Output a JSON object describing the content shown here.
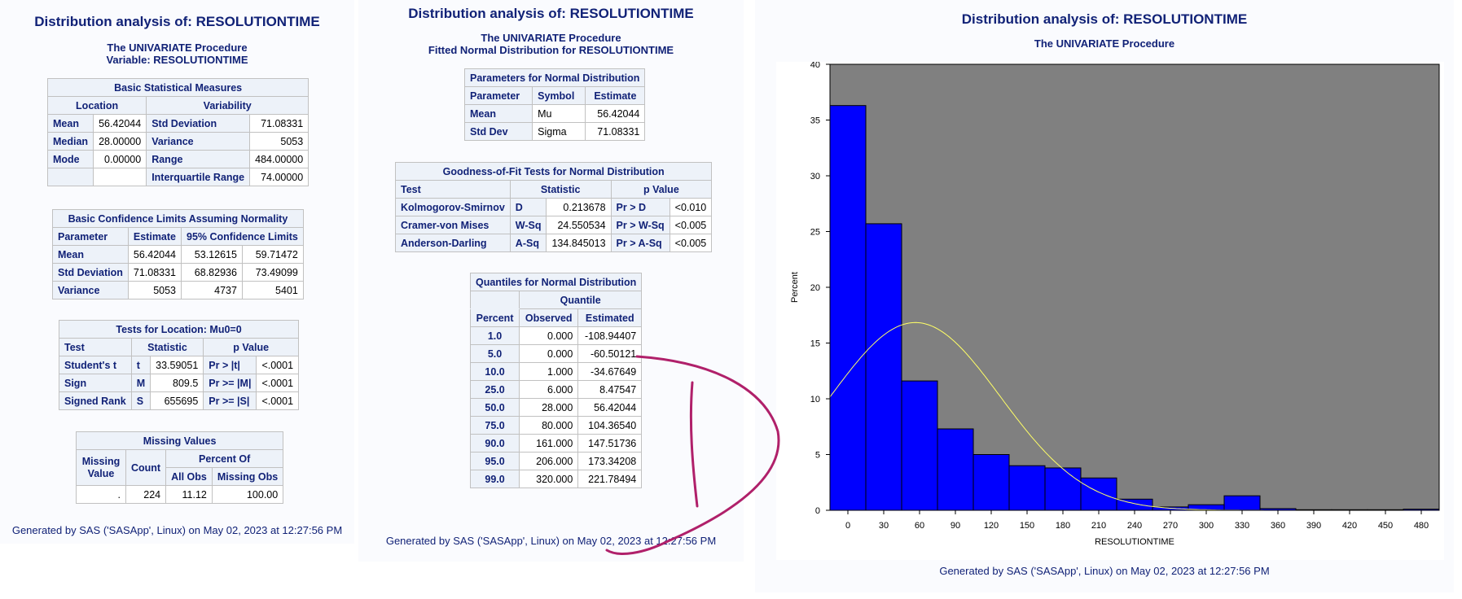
{
  "panel1": {
    "title": "Distribution analysis of: RESOLUTIONTIME",
    "proc": "The UNIVARIATE Procedure",
    "variable": "Variable: RESOLUTIONTIME",
    "basic_measures": {
      "caption": "Basic Statistical Measures",
      "group_location": "Location",
      "group_variability": "Variability",
      "rows": [
        [
          "Mean",
          "56.42044",
          "Std Deviation",
          "71.08331"
        ],
        [
          "Median",
          "28.00000",
          "Variance",
          "5053"
        ],
        [
          "Mode",
          "0.00000",
          "Range",
          "484.00000"
        ],
        [
          "",
          "",
          "Interquartile Range",
          "74.00000"
        ]
      ]
    },
    "confidence": {
      "caption": "Basic Confidence Limits Assuming Normality",
      "headers": [
        "Parameter",
        "Estimate",
        "95% Confidence Limits"
      ],
      "rows": [
        [
          "Mean",
          "56.42044",
          "53.12615",
          "59.71472"
        ],
        [
          "Std Deviation",
          "71.08331",
          "68.82936",
          "73.49099"
        ],
        [
          "Variance",
          "5053",
          "4737",
          "5401"
        ]
      ]
    },
    "location_tests": {
      "caption": "Tests for Location: Mu0=0",
      "headers": [
        "Test",
        "Statistic",
        "p Value"
      ],
      "rows": [
        [
          "Student's t",
          "t",
          "33.59051",
          "Pr > |t|",
          "<.0001"
        ],
        [
          "Sign",
          "M",
          "809.5",
          "Pr >= |M|",
          "<.0001"
        ],
        [
          "Signed Rank",
          "S",
          "655695",
          "Pr >= |S|",
          "<.0001"
        ]
      ]
    },
    "missing": {
      "caption": "Missing Values",
      "header_missing": "Missing Value",
      "header_count": "Count",
      "header_percent_of": "Percent Of",
      "header_all": "All Obs",
      "header_missing_obs": "Missing Obs",
      "row": [
        ".",
        "224",
        "11.12",
        "100.00"
      ]
    },
    "footer": "Generated by SAS ('SASApp', Linux) on May 02, 2023 at 12:27:56 PM"
  },
  "panel2": {
    "title": "Distribution analysis of: RESOLUTIONTIME",
    "proc": "The UNIVARIATE Procedure",
    "subtitle": "Fitted Normal Distribution for RESOLUTIONTIME",
    "params": {
      "caption": "Parameters for Normal Distribution",
      "headers": [
        "Parameter",
        "Symbol",
        "Estimate"
      ],
      "rows": [
        [
          "Mean",
          "Mu",
          "56.42044"
        ],
        [
          "Std Dev",
          "Sigma",
          "71.08331"
        ]
      ]
    },
    "gof": {
      "caption": "Goodness-of-Fit Tests for Normal Distribution",
      "headers": [
        "Test",
        "Statistic",
        "p Value"
      ],
      "rows": [
        [
          "Kolmogorov-Smirnov",
          "D",
          "0.213678",
          "Pr > D",
          "<0.010"
        ],
        [
          "Cramer-von Mises",
          "W-Sq",
          "24.550534",
          "Pr > W-Sq",
          "<0.005"
        ],
        [
          "Anderson-Darling",
          "A-Sq",
          "134.845013",
          "Pr > A-Sq",
          "<0.005"
        ]
      ]
    },
    "quantiles": {
      "caption": "Quantiles for Normal Distribution",
      "group": "Quantile",
      "headers": [
        "Percent",
        "Observed",
        "Estimated"
      ],
      "rows": [
        [
          "1.0",
          "0.000",
          "-108.94407"
        ],
        [
          "5.0",
          "0.000",
          "-60.50121"
        ],
        [
          "10.0",
          "1.000",
          "-34.67649"
        ],
        [
          "25.0",
          "6.000",
          "8.47547"
        ],
        [
          "50.0",
          "28.000",
          "56.42044"
        ],
        [
          "75.0",
          "80.000",
          "104.36540"
        ],
        [
          "90.0",
          "161.000",
          "147.51736"
        ],
        [
          "95.0",
          "206.000",
          "173.34208"
        ],
        [
          "99.0",
          "320.000",
          "221.78494"
        ]
      ]
    },
    "footer": "Generated by SAS ('SASApp', Linux) on May 02, 2023 at 12:27:56 PM"
  },
  "panel3": {
    "title": "Distribution analysis of: RESOLUTIONTIME",
    "proc": "The UNIVARIATE Procedure",
    "footer": "Generated by SAS ('SASApp', Linux) on May 02, 2023 at 12:27:56 PM"
  },
  "colors": {
    "bar": "#0000ff",
    "plot_bg": "#808080",
    "curve": "#ffff66",
    "annotation": "#b0206a",
    "title": "#112277"
  },
  "chart_data": {
    "type": "bar",
    "title": "",
    "xlabel": "RESOLUTIONTIME",
    "ylabel": "Percent",
    "bin_width": 30,
    "x_ticks": [
      0,
      30,
      60,
      90,
      120,
      150,
      180,
      210,
      240,
      270,
      300,
      330,
      360,
      390,
      420,
      450,
      480
    ],
    "y_ticks": [
      0,
      5,
      10,
      15,
      20,
      25,
      30,
      35,
      40
    ],
    "xlim": [
      -15,
      495
    ],
    "ylim": [
      0,
      40
    ],
    "bin_centers": [
      0,
      30,
      60,
      90,
      120,
      150,
      180,
      210,
      240,
      270,
      300,
      330,
      360,
      390,
      420,
      450,
      480
    ],
    "values": [
      36.3,
      25.7,
      11.6,
      7.3,
      5.0,
      4.0,
      3.8,
      2.9,
      1.0,
      0.3,
      0.5,
      1.3,
      0.15,
      0.05,
      0.05,
      0.05,
      0.1
    ],
    "normal_curve": {
      "mu": 56.42044,
      "sigma": 71.08331
    },
    "grid": false
  }
}
